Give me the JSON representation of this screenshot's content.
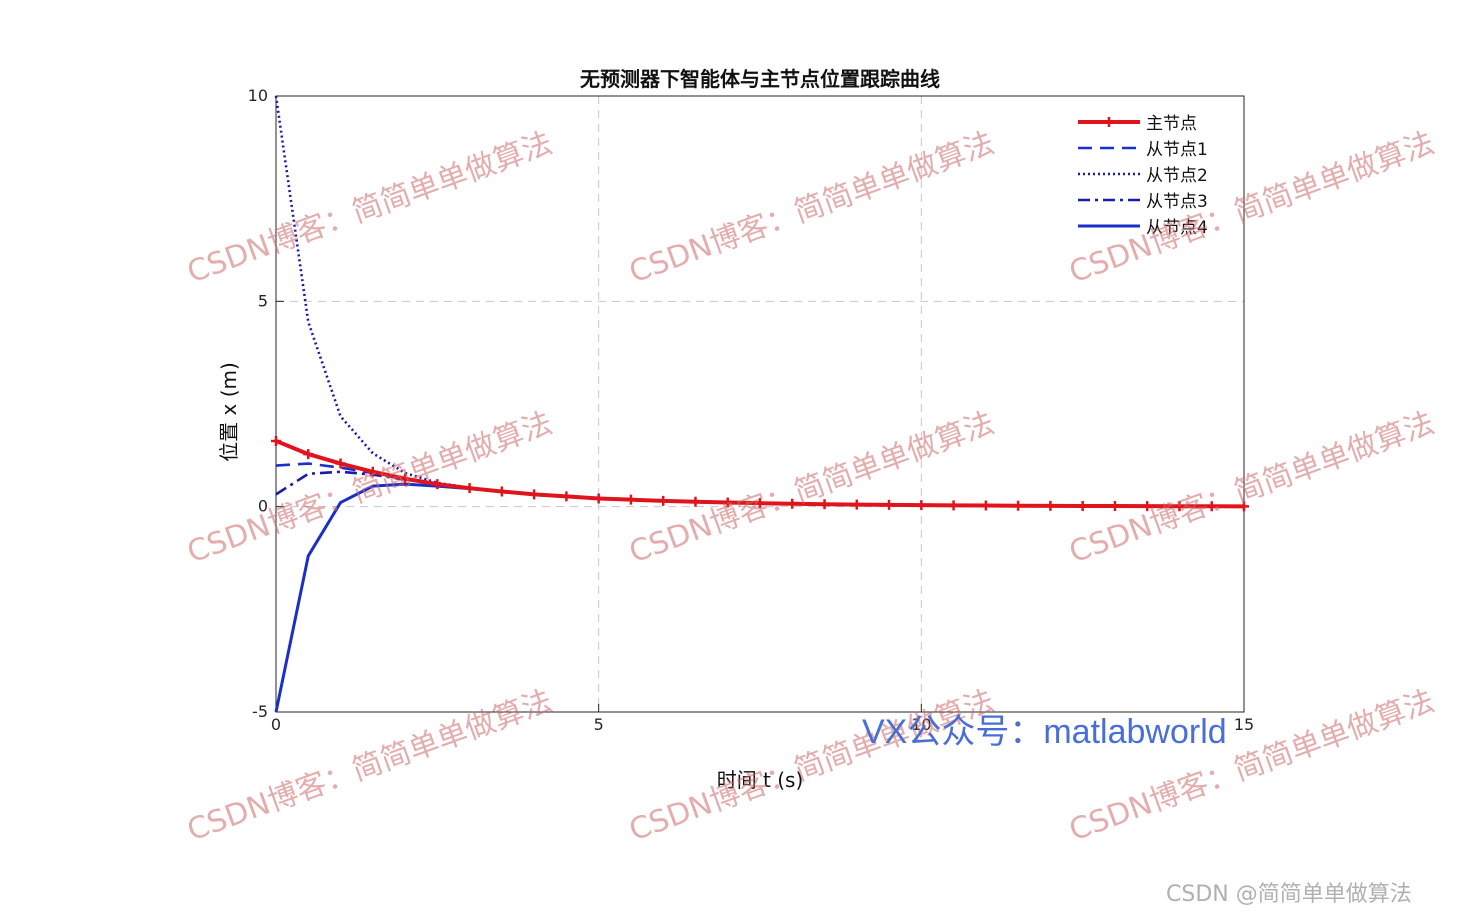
{
  "chart_data": {
    "type": "line",
    "title": "无预测器下智能体与主节点位置跟踪曲线",
    "xlabel": "时间 t (s)",
    "ylabel": "位置 x (m)",
    "xlim": [
      0,
      15
    ],
    "ylim": [
      -5,
      10
    ],
    "xticks": [
      "0",
      "5",
      "10",
      "15"
    ],
    "yticks": [
      "-5",
      "0",
      "5",
      "10"
    ],
    "grid": true,
    "legend_position": "top-right",
    "x": [
      0,
      0.5,
      1,
      1.5,
      2,
      2.5,
      3,
      3.5,
      4,
      4.5,
      5,
      5.5,
      6,
      6.5,
      7,
      7.5,
      8,
      8.5,
      9,
      9.5,
      10,
      10.5,
      11,
      11.5,
      12,
      12.5,
      13,
      13.5,
      14,
      14.5,
      15
    ],
    "series": [
      {
        "name": "主节点",
        "style": "solid-marker",
        "color": "#e0141c",
        "values": [
          1.6,
          1.28,
          1.05,
          0.85,
          0.68,
          0.55,
          0.45,
          0.37,
          0.3,
          0.25,
          0.2,
          0.17,
          0.14,
          0.12,
          0.1,
          0.085,
          0.07,
          0.06,
          0.05,
          0.043,
          0.037,
          0.032,
          0.027,
          0.023,
          0.02,
          0.017,
          0.015,
          0.013,
          0.011,
          0.009,
          0.008
        ]
      },
      {
        "name": "从节点1",
        "style": "dashed",
        "color": "#1a32c8",
        "values": [
          1.0,
          1.05,
          0.95,
          0.82,
          0.67,
          0.54,
          0.45,
          0.37,
          0.3,
          0.25,
          0.2,
          0.17,
          0.14,
          0.12,
          0.1,
          0.085,
          0.07,
          0.06,
          0.05,
          0.043,
          0.037,
          0.032,
          0.027,
          0.023,
          0.02,
          0.017,
          0.015,
          0.013,
          0.011,
          0.009,
          0.008
        ]
      },
      {
        "name": "从节点2",
        "style": "dotted",
        "color": "#1a1aa8",
        "values": [
          10.0,
          4.5,
          2.2,
          1.3,
          0.82,
          0.58,
          0.46,
          0.37,
          0.3,
          0.25,
          0.2,
          0.17,
          0.14,
          0.12,
          0.1,
          0.085,
          0.07,
          0.06,
          0.05,
          0.043,
          0.037,
          0.032,
          0.027,
          0.023,
          0.02,
          0.017,
          0.015,
          0.013,
          0.011,
          0.009,
          0.008
        ]
      },
      {
        "name": "从节点3",
        "style": "dashdot",
        "color": "#1a1aa8",
        "values": [
          0.3,
          0.8,
          0.85,
          0.78,
          0.66,
          0.54,
          0.45,
          0.37,
          0.3,
          0.25,
          0.2,
          0.17,
          0.14,
          0.12,
          0.1,
          0.085,
          0.07,
          0.06,
          0.05,
          0.043,
          0.037,
          0.032,
          0.027,
          0.023,
          0.02,
          0.017,
          0.015,
          0.013,
          0.011,
          0.009,
          0.008
        ]
      },
      {
        "name": "从节点4",
        "style": "solid",
        "color": "#1a2fc8",
        "values": [
          -5.0,
          -1.2,
          0.1,
          0.5,
          0.55,
          0.5,
          0.44,
          0.37,
          0.3,
          0.25,
          0.2,
          0.17,
          0.14,
          0.12,
          0.1,
          0.085,
          0.07,
          0.06,
          0.05,
          0.043,
          0.037,
          0.032,
          0.027,
          0.023,
          0.02,
          0.017,
          0.015,
          0.013,
          0.011,
          0.009,
          0.008
        ]
      }
    ]
  },
  "watermark": {
    "text": "CSDN博客：简简单单做算法",
    "vx_text": "VX公众号：matlabworld",
    "corner_text": "CSDN @简简单单做算法"
  }
}
